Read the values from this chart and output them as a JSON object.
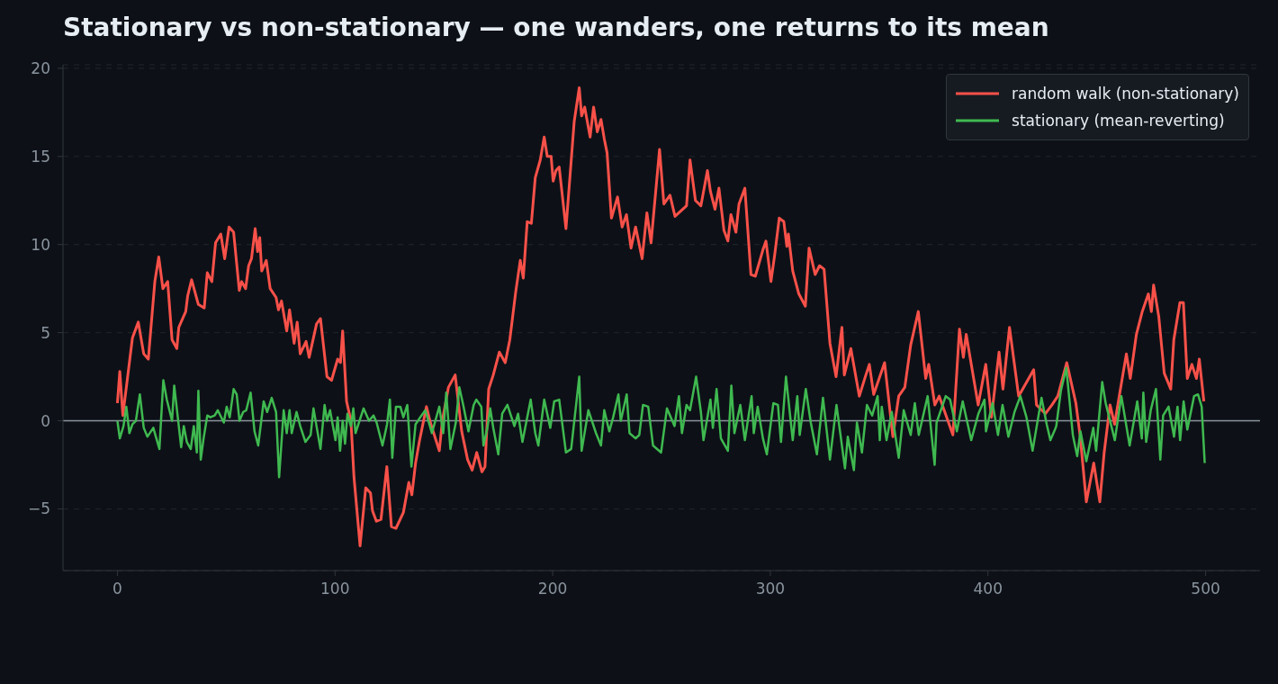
{
  "chart_data": {
    "type": "line",
    "title": "Stationary vs non-stationary — one wanders, one returns to its mean",
    "xlim": [
      -25,
      525
    ],
    "xticks": [
      0,
      100,
      200,
      300,
      400,
      500
    ],
    "ylim": [
      -8.5,
      20.2
    ],
    "yticks": [
      {
        "value": -5,
        "label": "−5"
      },
      0,
      5,
      10,
      15,
      20
    ],
    "grid": "y",
    "legend": "top right",
    "marker": "none",
    "line_style": "solid",
    "ref_lines": [
      {
        "axis": "y",
        "value": 0,
        "color": "#8b949e"
      }
    ],
    "series": [
      {
        "name": "random walk (non-stationary)",
        "color": "#f85149",
        "x": [
          0,
          1.1,
          2.5,
          4.8,
          6.9,
          9.6,
          12.1,
          14.2,
          17.2,
          19,
          20.9,
          23.1,
          25.1,
          27.3,
          28.2,
          31.4,
          32.3,
          34.1,
          37.2,
          39.9,
          41.3,
          43.4,
          45.1,
          47.5,
          49.3,
          51.3,
          53.4,
          56,
          57.1,
          58.9,
          60.3,
          61.6,
          63.3,
          64.4,
          65.4,
          66.3,
          68.4,
          70.2,
          72.9,
          74,
          75.4,
          77.8,
          79.1,
          81.2,
          82.6,
          84,
          86.7,
          88.1,
          91.5,
          93.3,
          96.3,
          98.4,
          101.2,
          102.5,
          103.5,
          105.3,
          107.3,
          108.7,
          111.5,
          114.1,
          116.3,
          117.2,
          119,
          121.1,
          123.8,
          125.9,
          128,
          131.4,
          133.9,
          135.3,
          137,
          138.7,
          142,
          143.8,
          147.9,
          149.3,
          152.1,
          155.2,
          158.2,
          160.9,
          163,
          165.1,
          167.5,
          168.9,
          170.6,
          172.7,
          175.5,
          178.2,
          180.3,
          183,
          185.1,
          186.5,
          188.3,
          190.2,
          192,
          194.3,
          196.1,
          197.5,
          199.3,
          200.2,
          201.5,
          203,
          206.1,
          209.9,
          212.2,
          213.3,
          214.7,
          217.2,
          218.8,
          220.5,
          222.2,
          223.7,
          225,
          227,
          229.8,
          231.9,
          233.9,
          236,
          238.1,
          241.1,
          243.3,
          245.2,
          249.1,
          251.1,
          253.9,
          256.2,
          261.5,
          263.1,
          265.6,
          268.1,
          271.1,
          272.5,
          274.6,
          276.4,
          278.7,
          280.5,
          281.9,
          284.2,
          285.6,
          288.3,
          291.1,
          293.1,
          296.6,
          298,
          300.3,
          302.1,
          304.1,
          306.2,
          307.6,
          308.3,
          310.3,
          313.1,
          316.1,
          317.8,
          320.6,
          322.6,
          324.7,
          327.4,
          330.2,
          332.9,
          334,
          337,
          340.9,
          343.9,
          345.5,
          347.5,
          352.5,
          356.3,
          359,
          361.8,
          364.5,
          368,
          371.4,
          372.8,
          375.6,
          377.6,
          383.9,
          386.9,
          388.7,
          390,
          395.5,
          399,
          401.6,
          405.1,
          406.9,
          409.9,
          414.1,
          421,
          422.3,
          426.4,
          429.4,
          432.1,
          436.2,
          440.4,
          442.4,
          445.2,
          448.6,
          451.4,
          453.4,
          456.1,
          458.2,
          460.6,
          463.6,
          465.4,
          468.2,
          470.9,
          473.7,
          475.1,
          476.1,
          478.5,
          481,
          484,
          485.4,
          488.2,
          489.8,
          491.6,
          493.7,
          495.8,
          497.1,
          499.2
        ],
        "values": [
          1.0,
          2.8,
          0.3,
          2.6,
          4.7,
          5.6,
          3.8,
          3.5,
          7.9,
          9.3,
          7.5,
          7.9,
          4.6,
          4.1,
          5.3,
          6.2,
          7.1,
          8.0,
          6.6,
          6.4,
          8.4,
          7.9,
          10.1,
          10.6,
          9.2,
          11.0,
          10.7,
          7.4,
          7.9,
          7.5,
          8.8,
          9.2,
          10.9,
          9.6,
          10.4,
          8.5,
          9.1,
          7.5,
          7.0,
          6.3,
          6.8,
          5.1,
          6.3,
          4.4,
          5.6,
          3.8,
          4.5,
          3.6,
          5.5,
          5.8,
          2.5,
          2.3,
          3.5,
          3.3,
          5.1,
          1.1,
          0,
          -3.2,
          -7.1,
          -3.8,
          -4.1,
          -5.1,
          -5.7,
          -5.6,
          -2.6,
          -6.0,
          -6.1,
          -5.2,
          -3.5,
          -4.2,
          -2.4,
          -1.2,
          0.8,
          -0.1,
          -1.7,
          0,
          1.9,
          2.6,
          -0.6,
          -2.2,
          -2.8,
          -1.8,
          -2.9,
          -2.6,
          1.8,
          2.6,
          3.9,
          3.3,
          4.6,
          7.3,
          9.1,
          8.1,
          11.3,
          11.2,
          13.8,
          14.8,
          16.1,
          15.0,
          15.0,
          13.6,
          14.2,
          14.4,
          10.9,
          17.0,
          18.9,
          17.3,
          17.8,
          16.1,
          17.8,
          16.4,
          17.1,
          16.0,
          15.2,
          11.5,
          12.7,
          11.0,
          11.7,
          9.8,
          11.0,
          9.2,
          11.8,
          10.1,
          15.4,
          12.3,
          12.8,
          11.6,
          12.2,
          14.8,
          12.5,
          12.2,
          14.2,
          13.0,
          12.0,
          13.2,
          10.8,
          10.2,
          11.7,
          10.7,
          12.3,
          13.2,
          8.3,
          8.2,
          9.7,
          10.2,
          7.9,
          9.5,
          11.5,
          11.3,
          9.9,
          10.6,
          8.5,
          7.2,
          6.5,
          9.8,
          8.3,
          8.8,
          8.6,
          4.4,
          2.5,
          5.3,
          2.6,
          4.1,
          1.4,
          2.6,
          3.2,
          1.5,
          3.3,
          -0.9,
          1.4,
          1.9,
          4.3,
          6.2,
          2.4,
          3.2,
          0.9,
          1.4,
          -0.8,
          5.2,
          3.6,
          4.9,
          0.9,
          3.2,
          0.2,
          3.9,
          1.8,
          5.3,
          1.4,
          2.9,
          0.9,
          0.4,
          0.9,
          1.4,
          3.3,
          1.0,
          -0.9,
          -4.6,
          -2.4,
          -4.6,
          -1.8,
          0.9,
          -0.2,
          1.6,
          3.8,
          2.4,
          4.9,
          6.2,
          7.2,
          6.2,
          7.7,
          5.9,
          2.7,
          1.8,
          4.6,
          6.7,
          6.7,
          2.4,
          3.2,
          2.4,
          3.5,
          1.1
        ]
      },
      {
        "name": "stationary (mean-reverting)",
        "color": "#3fb950",
        "x": [
          0,
          1.1,
          2.8,
          4.1,
          5.5,
          6.9,
          8.5,
          10.3,
          12.1,
          13.8,
          16.5,
          19.3,
          21.1,
          22.7,
          25.1,
          26.1,
          29.3,
          30.5,
          31.9,
          33.7,
          35.1,
          36.5,
          37.2,
          38.3,
          39.6,
          41.3,
          42.7,
          44.7,
          46.1,
          48.9,
          50.2,
          51.6,
          53.4,
          54.8,
          56.1,
          57.8,
          59.2,
          61.2,
          63,
          64.7,
          67.2,
          68.8,
          70.9,
          72.9,
          74.3,
          76.4,
          77.8,
          79.1,
          80.1,
          82.3,
          84,
          86.4,
          88.8,
          90.1,
          93.3,
          95.2,
          96.3,
          97.7,
          100.2,
          101.2,
          102.3,
          103.5,
          104.6,
          105.7,
          107.3,
          108.4,
          109.4,
          113.1,
          115.6,
          117.7,
          119.1,
          121.8,
          123.9,
          125.2,
          126.3,
          128,
          130,
          131.4,
          133.2,
          135.1,
          137,
          139.7,
          141.5,
          144.5,
          147.9,
          149.7,
          151.1,
          153,
          155.5,
          157.1,
          158.9,
          161.3,
          163.7,
          164.9,
          167.2,
          168.2,
          170,
          171.3,
          172.7,
          175,
          176.8,
          179.2,
          182.4,
          184.1,
          186.1,
          189.9,
          192,
          193.4,
          196.1,
          198.9,
          200.7,
          203,
          206.1,
          208.5,
          212.2,
          213.3,
          216.4,
          219.9,
          222.2,
          223.7,
          226,
          227.8,
          230.2,
          231.3,
          234,
          235.3,
          238.1,
          239.8,
          241.5,
          243.9,
          246.1,
          249.8,
          252.5,
          256,
          258,
          259.4,
          261.5,
          263.1,
          265.9,
          268.1,
          269.3,
          272.5,
          273.6,
          275.3,
          277.3,
          280.5,
          282.1,
          283.5,
          286.2,
          288.3,
          291.4,
          292.4,
          294.2,
          296.6,
          298.4,
          301.4,
          303.5,
          304.9,
          307.2,
          310.3,
          312.4,
          313.5,
          316.3,
          318.6,
          321.4,
          324.2,
          327.4,
          330.4,
          334.3,
          335.6,
          338.4,
          339.8,
          342.1,
          344.4,
          346.8,
          349.3,
          350.3,
          351.2,
          353.4,
          355.8,
          359,
          361.3,
          364.5,
          366.4,
          368.2,
          372.3,
          375.5,
          376.4,
          380.6,
          382.6,
          385.7,
          388.4,
          392.3,
          395.6,
          398.4,
          399.1,
          402.1,
          404.6,
          406.7,
          409.4,
          412.2,
          414.9,
          417.7,
          420.5,
          424.6,
          427,
          428.7,
          430.8,
          431.4,
          433.5,
          436,
          439,
          441,
          442.5,
          445.2,
          448.4,
          449.7,
          452.5,
          454.1,
          458.3,
          461.3,
          465.1,
          468.6,
          470.7,
          471.4,
          472.7,
          474.8,
          477.2,
          479.2,
          480.5,
          483,
          485.5,
          487.1,
          488.3,
          489.9,
          491.6,
          494.7,
          496.5,
          498.2,
          499.6
        ],
        "values": [
          0,
          -1.0,
          -0.3,
          0.8,
          -0.7,
          -0.2,
          0,
          1.5,
          -0.4,
          -0.9,
          -0.4,
          -1.6,
          2.3,
          1.2,
          0,
          2.0,
          -1.5,
          -0.3,
          -1.2,
          -1.6,
          -0.3,
          -1.8,
          1.7,
          -2.2,
          -1.0,
          0.3,
          0.2,
          0.3,
          0.6,
          -0.1,
          0.8,
          0.2,
          1.8,
          1.5,
          0,
          0.5,
          0.6,
          1.6,
          -0.6,
          -1.4,
          1.1,
          0.5,
          1.3,
          0.5,
          -3.2,
          0.6,
          -0.7,
          0.6,
          -0.7,
          0.5,
          -0.3,
          -1.2,
          -0.8,
          0.7,
          -1.6,
          0.9,
          0,
          0.6,
          -1.1,
          0.2,
          -1.7,
          0,
          -1.3,
          0.4,
          -0.3,
          0.7,
          -0.7,
          0.7,
          0,
          0.3,
          -0.1,
          -1.4,
          -0.2,
          1.2,
          -2.1,
          0.8,
          0.8,
          0.2,
          0.9,
          -2.6,
          -0.2,
          0.3,
          0.6,
          -0.7,
          0.8,
          -0.7,
          1.6,
          -1.6,
          -0.1,
          1.9,
          0.9,
          -0.6,
          0.9,
          1.2,
          0.8,
          -1.4,
          -0.4,
          0.7,
          -0.4,
          -1.9,
          0.4,
          0.9,
          -0.3,
          0.4,
          -1.2,
          1.2,
          -0.7,
          -1.4,
          1.2,
          -0.4,
          1.1,
          1.2,
          -1.8,
          -1.6,
          2.5,
          -1.7,
          0.6,
          -0.7,
          -1.4,
          0.6,
          -0.6,
          0.2,
          1.5,
          0,
          1.5,
          -0.7,
          -1.0,
          -0.8,
          0.9,
          0.8,
          -1.4,
          -1.8,
          0.7,
          -0.3,
          1.4,
          -0.7,
          0.9,
          0.6,
          2.5,
          0.5,
          -1.1,
          1.2,
          -0.4,
          1.8,
          -1.0,
          -1.7,
          2.0,
          -0.7,
          0.9,
          -1.1,
          1.4,
          -0.7,
          0.8,
          -1.0,
          -1.9,
          1.0,
          0.9,
          -1.2,
          2.5,
          -1.1,
          1.4,
          -0.8,
          1.8,
          -0.1,
          -1.9,
          1.3,
          -2.2,
          0.9,
          -2.7,
          -0.9,
          -2.8,
          -0.1,
          -1.8,
          0.9,
          0.3,
          1.4,
          -1.1,
          0.8,
          -1.1,
          0.5,
          -2.1,
          0.6,
          -0.8,
          1.0,
          -0.8,
          1.4,
          -2.5,
          -0.1,
          1.4,
          1.2,
          -0.6,
          1.1,
          -1.1,
          0.4,
          1.2,
          -0.6,
          1.0,
          -0.8,
          0.9,
          -0.9,
          0.5,
          1.4,
          0.2,
          -1.7,
          1.3,
          -0.2,
          -1.1,
          -0.5,
          -0.3,
          1.7,
          3.0,
          -0.8,
          -2.0,
          -0.6,
          -2.3,
          -0.4,
          -1.7,
          2.2,
          1.0,
          -1.1,
          1.4,
          -1.4,
          1.1,
          -1.0,
          1.6,
          -1.2,
          0.6,
          1.8,
          -2.2,
          0.3,
          0.8,
          -0.9,
          0.8,
          -1.1,
          1.1,
          -0.5,
          1.4,
          1.5,
          0.8,
          -2.4
        ]
      }
    ]
  }
}
